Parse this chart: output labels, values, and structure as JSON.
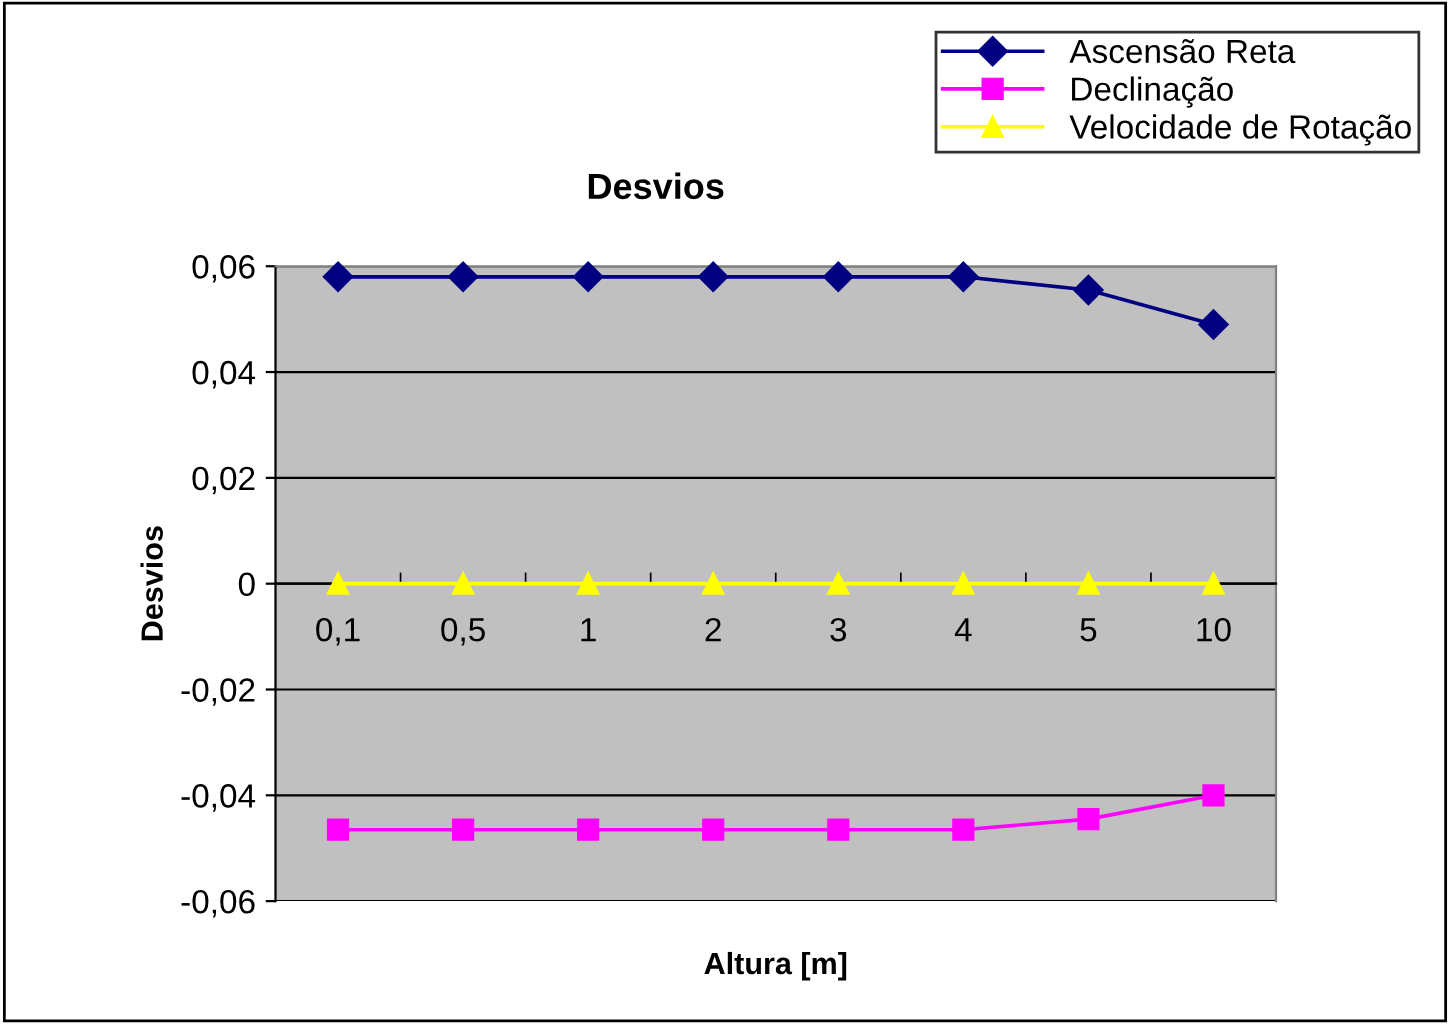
{
  "chart_data": {
    "type": "line",
    "title": "Desvios",
    "xlabel": "Altura [m]",
    "ylabel": "Desvios",
    "categories": [
      "0,1",
      "0,5",
      "1",
      "2",
      "3",
      "4",
      "5",
      "10"
    ],
    "series": [
      {
        "name": "Ascensão Reta",
        "color": "#000080",
        "marker": "diamond",
        "values": [
          0.058,
          0.058,
          0.058,
          0.058,
          0.058,
          0.058,
          0.0555,
          0.049
        ]
      },
      {
        "name": "Declinação",
        "color": "#ff00ff",
        "marker": "square",
        "values": [
          -0.0465,
          -0.0465,
          -0.0465,
          -0.0465,
          -0.0465,
          -0.0465,
          -0.0445,
          -0.04
        ]
      },
      {
        "name": "Velocidade de Rotação",
        "color": "#ffff00",
        "marker": "triangle",
        "values": [
          0,
          0,
          0,
          0,
          0,
          0,
          0,
          0
        ]
      }
    ],
    "ylim": [
      -0.06,
      0.06
    ],
    "yticks": [
      {
        "value": -0.06,
        "label": "-0,06"
      },
      {
        "value": -0.04,
        "label": "-0,04"
      },
      {
        "value": -0.02,
        "label": "-0,02"
      },
      {
        "value": 0,
        "label": "0"
      },
      {
        "value": 0.02,
        "label": "0,02"
      },
      {
        "value": 0.04,
        "label": "0,04"
      },
      {
        "value": 0.06,
        "label": "0,06"
      }
    ],
    "grid": "y",
    "legend": "top right"
  }
}
